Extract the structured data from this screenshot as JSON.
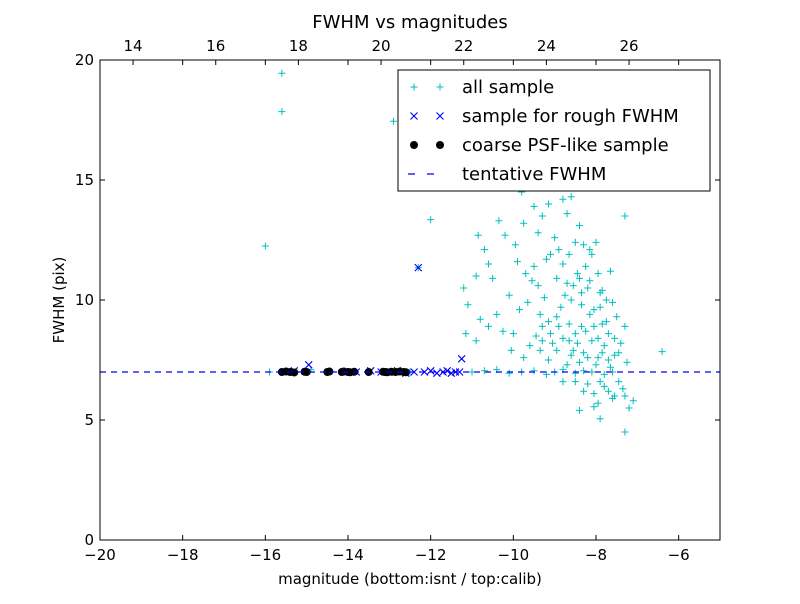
{
  "chart_data": {
    "type": "scatter",
    "title": "FWHM vs magnitudes",
    "xlabel": "magnitude (bottom:isnt / top:calib)",
    "ylabel": "FWHM (pix)",
    "xlim": [
      -20,
      -5
    ],
    "ylim": [
      0,
      20
    ],
    "x_ticks": [
      "−20",
      "−18",
      "−16",
      "−14",
      "−12",
      "−10",
      "−8",
      "−6"
    ],
    "y_ticks": [
      "0",
      "5",
      "10",
      "15",
      "20"
    ],
    "top_x_ticks": [
      "14",
      "16",
      "18",
      "20",
      "22",
      "24",
      "26"
    ],
    "top_x_offset": 33.2,
    "grid": false,
    "legend_position": "top-right",
    "reference_line": {
      "name": "tentative FWHM",
      "y": 7.0,
      "color": "#0000ff",
      "style": "dashed"
    },
    "series": [
      {
        "name": "all sample",
        "marker": "plus",
        "color": "#00bfbf",
        "points": [
          [
            -15.6,
            19.45
          ],
          [
            -15.6,
            17.85
          ],
          [
            -16.0,
            12.25
          ],
          [
            -12.9,
            17.45
          ],
          [
            -12.0,
            13.35
          ],
          [
            -12.3,
            11.35
          ],
          [
            -11.9,
            17.3
          ],
          [
            -7.3,
            13.5
          ],
          [
            -6.4,
            7.85
          ],
          [
            -7.3,
            4.5
          ],
          [
            -7.2,
            5.5
          ],
          [
            -7.1,
            5.8
          ],
          [
            -7.9,
            5.05
          ],
          [
            -8.4,
            5.4
          ],
          [
            -8.05,
            5.55
          ],
          [
            -15.9,
            7.0
          ],
          [
            -14.9,
            7.1
          ],
          [
            -13.5,
            7.0
          ],
          [
            -12.5,
            7.0
          ],
          [
            -11.0,
            7.0
          ],
          [
            -10.7,
            7.05
          ],
          [
            -10.4,
            7.1
          ],
          [
            -10.1,
            6.95
          ],
          [
            -9.8,
            7.0
          ],
          [
            -9.5,
            7.05
          ],
          [
            -9.2,
            6.9
          ],
          [
            -9.0,
            7.0
          ],
          [
            -8.8,
            7.1
          ],
          [
            -8.5,
            6.95
          ],
          [
            -8.3,
            7.05
          ],
          [
            -8.1,
            7.0
          ],
          [
            -7.8,
            6.9
          ],
          [
            -7.6,
            7.0
          ],
          [
            -10.85,
            12.7
          ],
          [
            -10.7,
            12.1
          ],
          [
            -10.6,
            11.5
          ],
          [
            -10.9,
            11.0
          ],
          [
            -11.2,
            10.5
          ],
          [
            -10.5,
            10.9
          ],
          [
            -11.1,
            9.8
          ],
          [
            -11.15,
            8.6
          ],
          [
            -10.9,
            8.3
          ],
          [
            -10.8,
            9.2
          ],
          [
            -10.6,
            8.9
          ],
          [
            -10.35,
            13.3
          ],
          [
            -10.2,
            12.7
          ],
          [
            -9.95,
            12.3
          ],
          [
            -9.9,
            11.6
          ],
          [
            -9.7,
            11.1
          ],
          [
            -10.1,
            10.2
          ],
          [
            -10.4,
            9.4
          ],
          [
            -10.25,
            8.7
          ],
          [
            -10.0,
            8.6
          ],
          [
            -9.85,
            9.6
          ],
          [
            -9.6,
            8.1
          ],
          [
            -9.3,
            8.9
          ],
          [
            -10.05,
            7.9
          ],
          [
            -9.75,
            7.6
          ],
          [
            -9.95,
            17.5
          ],
          [
            -9.6,
            16.0
          ],
          [
            -9.8,
            14.5
          ],
          [
            -9.5,
            13.9
          ],
          [
            -9.75,
            13.2
          ],
          [
            -9.4,
            12.8
          ],
          [
            -9.3,
            13.5
          ],
          [
            -9.15,
            14.0
          ],
          [
            -9.45,
            15.1
          ],
          [
            -9.2,
            16.3
          ],
          [
            -9.0,
            17.3
          ],
          [
            -9.05,
            15.7
          ],
          [
            -8.95,
            14.8
          ],
          [
            -8.8,
            14.2
          ],
          [
            -8.7,
            13.6
          ],
          [
            -8.6,
            14.3
          ],
          [
            -8.75,
            16.6
          ],
          [
            -8.55,
            15.3
          ],
          [
            -9.0,
            12.6
          ],
          [
            -9.1,
            11.9
          ],
          [
            -9.5,
            11.4
          ],
          [
            -9.4,
            10.6
          ],
          [
            -9.25,
            10.1
          ],
          [
            -9.35,
            9.4
          ],
          [
            -9.65,
            9.9
          ],
          [
            -9.55,
            10.8
          ],
          [
            -9.15,
            9.1
          ],
          [
            -9.45,
            8.5
          ],
          [
            -9.35,
            7.9
          ],
          [
            -9.05,
            8.2
          ],
          [
            -8.9,
            12.1
          ],
          [
            -8.8,
            11.5
          ],
          [
            -8.65,
            11.9
          ],
          [
            -8.5,
            12.4
          ],
          [
            -8.4,
            13.1
          ],
          [
            -8.3,
            12.3
          ],
          [
            -8.45,
            11.1
          ],
          [
            -8.55,
            10.6
          ],
          [
            -8.75,
            10.2
          ],
          [
            -8.85,
            9.7
          ],
          [
            -8.95,
            9.3
          ],
          [
            -8.65,
            9.0
          ],
          [
            -8.5,
            8.6
          ],
          [
            -8.35,
            9.8
          ],
          [
            -8.25,
            11.4
          ],
          [
            -8.2,
            10.5
          ],
          [
            -8.1,
            11.9
          ],
          [
            -8.0,
            12.4
          ],
          [
            -7.95,
            11.1
          ],
          [
            -7.85,
            10.4
          ],
          [
            -8.15,
            9.4
          ],
          [
            -8.05,
            8.9
          ],
          [
            -7.9,
            9.7
          ],
          [
            -7.75,
            9.1
          ],
          [
            -7.7,
            8.6
          ],
          [
            -7.6,
            9.9
          ],
          [
            -7.55,
            8.4
          ],
          [
            -7.5,
            9.3
          ],
          [
            -7.45,
            7.8
          ],
          [
            -7.4,
            8.2
          ],
          [
            -7.3,
            8.9
          ],
          [
            -7.25,
            7.4
          ],
          [
            -7.65,
            7.2
          ],
          [
            -7.8,
            8.1
          ],
          [
            -7.95,
            7.6
          ],
          [
            -8.1,
            8.3
          ],
          [
            -8.3,
            7.8
          ],
          [
            -8.45,
            8.2
          ],
          [
            -8.6,
            7.7
          ],
          [
            -8.8,
            8.4
          ],
          [
            -8.95,
            7.9
          ],
          [
            -9.15,
            7.5
          ],
          [
            -8.7,
            7.3
          ],
          [
            -8.4,
            7.4
          ],
          [
            -8.2,
            7.6
          ],
          [
            -8.0,
            7.3
          ],
          [
            -7.85,
            7.8
          ],
          [
            -7.7,
            7.5
          ],
          [
            -7.55,
            7.7
          ],
          [
            -8.55,
            7.9
          ],
          [
            -8.25,
            8.7
          ],
          [
            -8.05,
            9.6
          ],
          [
            -7.9,
            10.3
          ],
          [
            -8.35,
            10.3
          ],
          [
            -8.6,
            10.0
          ],
          [
            -8.15,
            10.8
          ],
          [
            -8.3,
            6.2
          ],
          [
            -8.05,
            6.1
          ],
          [
            -7.8,
            6.4
          ],
          [
            -7.55,
            6.0
          ],
          [
            -7.35,
            6.3
          ],
          [
            -7.6,
            5.9
          ],
          [
            -8.2,
            6.5
          ],
          [
            -8.5,
            6.6
          ],
          [
            -8.8,
            6.6
          ],
          [
            -7.9,
            6.6
          ],
          [
            -7.7,
            6.2
          ],
          [
            -7.95,
            5.7
          ],
          [
            -7.45,
            6.6
          ],
          [
            -7.3,
            6.0
          ],
          [
            -8.4,
            10.9
          ],
          [
            -8.7,
            10.7
          ],
          [
            -8.95,
            10.9
          ],
          [
            -9.2,
            11.7
          ],
          [
            -8.15,
            12.1
          ],
          [
            -7.85,
            9.0
          ],
          [
            -7.75,
            10.0
          ],
          [
            -7.65,
            11.2
          ],
          [
            -7.95,
            8.4
          ],
          [
            -8.35,
            8.9
          ],
          [
            -8.65,
            8.3
          ],
          [
            -8.9,
            8.9
          ],
          [
            -9.1,
            8.6
          ],
          [
            -9.3,
            8.3
          ]
        ]
      },
      {
        "name": "sample for rough FWHM",
        "marker": "x",
        "color": "#0000ff",
        "points": [
          [
            -12.3,
            11.35
          ],
          [
            -11.25,
            7.55
          ],
          [
            -14.95,
            7.3
          ],
          [
            -12.15,
            7.0
          ],
          [
            -12.0,
            7.05
          ],
          [
            -11.85,
            6.95
          ],
          [
            -11.7,
            7.0
          ],
          [
            -11.6,
            7.05
          ],
          [
            -11.5,
            6.95
          ],
          [
            -11.4,
            7.0
          ],
          [
            -11.3,
            7.0
          ],
          [
            -12.4,
            7.0
          ],
          [
            -12.6,
            6.95
          ],
          [
            -12.8,
            7.05
          ],
          [
            -13.0,
            7.0
          ],
          [
            -13.2,
            7.0
          ],
          [
            -13.45,
            7.05
          ],
          [
            -13.8,
            7.0
          ],
          [
            -14.1,
            7.0
          ],
          [
            -15.3,
            7.05
          ]
        ]
      },
      {
        "name": "coarse PSF-like sample",
        "marker": "circle",
        "color": "#000000",
        "points": [
          [
            -15.6,
            7.0
          ],
          [
            -15.5,
            7.02
          ],
          [
            -15.4,
            7.0
          ],
          [
            -15.3,
            6.98
          ],
          [
            -15.05,
            7.01
          ],
          [
            -15.0,
            7.0
          ],
          [
            -14.5,
            7.0
          ],
          [
            -14.45,
            7.02
          ],
          [
            -14.15,
            7.0
          ],
          [
            -14.1,
            7.02
          ],
          [
            -14.0,
            7.0
          ],
          [
            -13.95,
            6.99
          ],
          [
            -13.85,
            7.01
          ],
          [
            -13.5,
            7.0
          ],
          [
            -13.15,
            7.01
          ],
          [
            -13.1,
            7.0
          ],
          [
            -13.05,
            6.99
          ],
          [
            -12.95,
            7.01
          ],
          [
            -12.85,
            7.0
          ],
          [
            -12.75,
            7.02
          ],
          [
            -12.65,
            7.0
          ],
          [
            -12.6,
            6.99
          ]
        ]
      }
    ]
  }
}
